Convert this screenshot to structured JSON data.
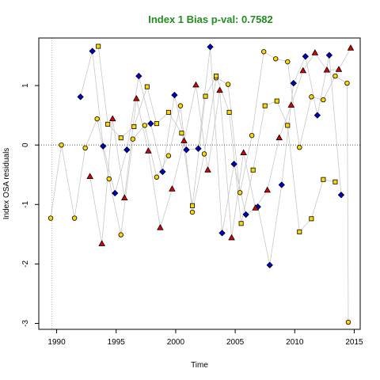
{
  "chart_data": {
    "type": "scatter",
    "title": "Index 1 Bias p-val: 0.7582",
    "title_color": "#228B22",
    "xlabel": "Time",
    "ylabel": "Index OSA residuals",
    "xlim": [
      1988.5,
      2015.5
    ],
    "ylim": [
      -3.1,
      1.8
    ],
    "xticks": [
      1990,
      1995,
      2000,
      2005,
      2010,
      2015
    ],
    "yticks": [
      -3,
      -2,
      -1,
      0,
      1
    ],
    "grid": false,
    "reference_lines": {
      "horizontal_dotted_y": 0,
      "vertical_dotted_x": 1989.6
    },
    "series": [
      {
        "marker": "circle",
        "color": "#FFD700",
        "points": [
          [
            1989.5,
            -1.23
          ],
          [
            1990.4,
            0.0
          ],
          [
            1991.5,
            -1.23
          ],
          [
            1992.4,
            -0.05
          ],
          [
            1993.4,
            0.44
          ],
          [
            1994.4,
            -0.57
          ],
          [
            1995.4,
            -1.51
          ],
          [
            1996.4,
            0.1
          ],
          [
            1997.4,
            0.33
          ],
          [
            1998.4,
            -0.54
          ],
          [
            1999.4,
            -0.18
          ],
          [
            2000.4,
            0.66
          ],
          [
            2001.4,
            -1.13
          ],
          [
            2002.4,
            -0.15
          ],
          [
            2003.4,
            1.13
          ],
          [
            2004.4,
            1.02
          ],
          [
            2005.4,
            -0.8
          ],
          [
            2006.4,
            0.16
          ],
          [
            2007.4,
            1.57
          ],
          [
            2008.4,
            1.45
          ],
          [
            2009.4,
            1.4
          ],
          [
            2010.4,
            -0.04
          ],
          [
            2011.4,
            0.81
          ],
          [
            2012.4,
            0.76
          ],
          [
            2013.4,
            1.16
          ],
          [
            2014.4,
            1.04
          ],
          [
            2014.5,
            -2.98
          ]
        ]
      },
      {
        "marker": "square",
        "color": "#FFD700",
        "points": [
          [
            1993.5,
            1.66
          ],
          [
            1994.3,
            0.35
          ],
          [
            1995.4,
            0.12
          ],
          [
            1996.5,
            0.31
          ],
          [
            1997.6,
            0.98
          ],
          [
            1998.4,
            0.36
          ],
          [
            1999.4,
            0.55
          ],
          [
            2000.5,
            0.2
          ],
          [
            2001.4,
            -1.02
          ],
          [
            2002.5,
            0.82
          ],
          [
            2003.4,
            1.16
          ],
          [
            2004.5,
            0.55
          ],
          [
            2005.5,
            -1.32
          ],
          [
            2006.5,
            -0.42
          ],
          [
            2007.5,
            0.66
          ],
          [
            2008.5,
            0.74
          ],
          [
            2009.4,
            0.33
          ],
          [
            2010.4,
            -1.46
          ],
          [
            2011.4,
            -1.24
          ],
          [
            2012.4,
            -0.58
          ],
          [
            2013.4,
            -0.62
          ]
        ]
      },
      {
        "marker": "diamond",
        "color": "#0000CD",
        "points": [
          [
            1992.0,
            0.81
          ],
          [
            1993.0,
            1.58
          ],
          [
            1993.9,
            -0.02
          ],
          [
            1994.9,
            -0.81
          ],
          [
            1995.9,
            -0.08
          ],
          [
            1996.9,
            1.16
          ],
          [
            1997.9,
            0.36
          ],
          [
            1998.9,
            -0.45
          ],
          [
            1999.9,
            0.84
          ],
          [
            2000.9,
            -0.08
          ],
          [
            2001.9,
            -0.06
          ],
          [
            2002.9,
            1.65
          ],
          [
            2003.9,
            -1.48
          ],
          [
            2004.9,
            -0.32
          ],
          [
            2005.9,
            -1.17
          ],
          [
            2006.9,
            -1.04
          ],
          [
            2007.9,
            -2.02
          ],
          [
            2008.9,
            -0.67
          ],
          [
            2009.9,
            1.04
          ],
          [
            2010.9,
            1.49
          ],
          [
            2011.9,
            0.5
          ],
          [
            2012.9,
            1.51
          ],
          [
            2013.9,
            -0.84
          ]
        ]
      },
      {
        "marker": "triangle",
        "color": "#DD0000",
        "points": [
          [
            1992.8,
            -0.53
          ],
          [
            1993.8,
            -1.66
          ],
          [
            1994.7,
            0.44
          ],
          [
            1995.7,
            -0.89
          ],
          [
            1996.7,
            0.78
          ],
          [
            1997.7,
            -0.1
          ],
          [
            1998.7,
            -1.39
          ],
          [
            1999.7,
            -0.74
          ],
          [
            2000.7,
            0.07
          ],
          [
            2001.7,
            1.01
          ],
          [
            2002.7,
            -0.42
          ],
          [
            2003.7,
            0.92
          ],
          [
            2004.7,
            -1.56
          ],
          [
            2005.7,
            -0.13
          ],
          [
            2006.7,
            -1.06
          ],
          [
            2007.7,
            -0.76
          ],
          [
            2008.7,
            0.12
          ],
          [
            2009.7,
            0.67
          ],
          [
            2010.7,
            1.25
          ],
          [
            2011.7,
            1.55
          ],
          [
            2012.7,
            1.26
          ],
          [
            2013.7,
            1.27
          ],
          [
            2014.7,
            1.63
          ]
        ]
      }
    ]
  }
}
